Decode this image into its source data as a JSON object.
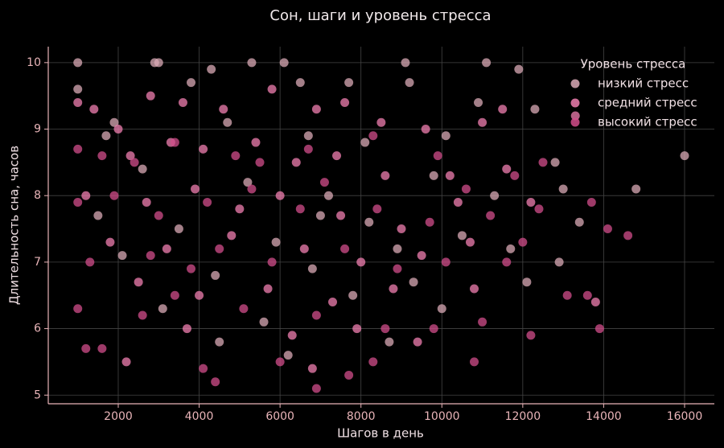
{
  "chart_data": {
    "type": "scatter",
    "title": "Сон, шаги и уровень стресса",
    "x_label": "Шагов в день",
    "y_label": "Длительность сна, часов",
    "legend_title": "Уровень стресса",
    "legend_position": "upper right",
    "grid": true,
    "xlim": [
      270,
      16736
    ],
    "ylim": [
      4.87,
      10.24
    ],
    "xticks": [
      2000,
      4000,
      6000,
      8000,
      10000,
      12000,
      14000,
      16000
    ],
    "yticks": [
      5,
      6,
      7,
      8,
      9,
      10
    ],
    "series": [
      {
        "name": "низкий стресс",
        "color": "#d9a9b6",
        "x": [
          1000,
          2900,
          3000,
          5300,
          6100,
          9100,
          11100,
          11900,
          4300,
          1000,
          3800,
          6500,
          7700,
          9200,
          10900,
          12300,
          1900,
          4700,
          6700,
          8100,
          10100,
          12800,
          14800,
          16000,
          13000,
          2600,
          5200,
          7200,
          9800,
          11300,
          1500,
          3500,
          5900,
          8200,
          10500,
          12900,
          2100,
          4400,
          6800,
          9300,
          11700,
          3100,
          5600,
          7800,
          10000,
          12100,
          4500,
          6200,
          8700,
          1700,
          13400,
          7000,
          8900
        ],
        "values": [
          10,
          10,
          10,
          10,
          10,
          10,
          10,
          9.9,
          9.9,
          9.6,
          9.7,
          9.7,
          9.7,
          9.7,
          9.4,
          9.3,
          9.1,
          9.1,
          8.9,
          8.8,
          8.9,
          8.5,
          8.1,
          8.6,
          8.1,
          8.4,
          8.2,
          8.0,
          8.3,
          8.0,
          7.7,
          7.5,
          7.3,
          7.6,
          7.4,
          7.0,
          7.1,
          6.8,
          6.9,
          6.7,
          7.2,
          6.3,
          6.1,
          6.5,
          6.3,
          6.7,
          5.8,
          5.6,
          5.8,
          8.9,
          7.6,
          7.7,
          7.2
        ]
      },
      {
        "name": "средний стресс",
        "color": "#f07fb0",
        "x": [
          1000,
          1400,
          2000,
          2800,
          3600,
          4600,
          5800,
          6900,
          7600,
          8500,
          9600,
          11000,
          11500,
          13300,
          2300,
          3300,
          4100,
          5400,
          6400,
          7400,
          8600,
          10200,
          11600,
          1200,
          2700,
          3900,
          5000,
          6000,
          7500,
          9000,
          10400,
          12200,
          1800,
          3200,
          4800,
          6600,
          8000,
          9500,
          10700,
          2500,
          4000,
          5700,
          7300,
          8800,
          10800,
          3700,
          6300,
          7900,
          9400,
          13800,
          2200,
          6800
        ],
        "values": [
          9.4,
          9.3,
          9.0,
          9.5,
          9.4,
          9.3,
          9.6,
          9.3,
          9.4,
          9.1,
          9.0,
          9.1,
          9.3,
          9.2,
          8.6,
          8.8,
          8.7,
          8.8,
          8.5,
          8.6,
          8.3,
          8.3,
          8.4,
          8.0,
          7.9,
          8.1,
          7.8,
          8.0,
          7.7,
          7.5,
          7.9,
          7.9,
          7.3,
          7.2,
          7.4,
          7.2,
          7.0,
          7.1,
          7.3,
          6.7,
          6.5,
          6.6,
          6.4,
          6.6,
          6.6,
          6.0,
          5.9,
          6.0,
          5.8,
          6.4,
          5.5,
          5.4
        ]
      },
      {
        "name": "высокий стресс",
        "color": "#d24d8b",
        "x": [
          1000,
          1600,
          2400,
          3400,
          4900,
          5500,
          6700,
          8300,
          9900,
          10600,
          11800,
          12500,
          1000,
          1900,
          3000,
          4200,
          5300,
          6500,
          7100,
          8400,
          9700,
          11200,
          12400,
          13700,
          14100,
          14600,
          1300,
          2800,
          3800,
          4500,
          5800,
          7600,
          8900,
          10100,
          11600,
          12000,
          13100,
          13600,
          1000,
          2600,
          3400,
          5100,
          6900,
          8600,
          9800,
          11000,
          12200,
          13900,
          1200,
          1600,
          4100,
          4400,
          6000,
          6900,
          7700,
          8300,
          10800
        ],
        "values": [
          8.7,
          8.6,
          8.5,
          8.8,
          8.6,
          8.5,
          8.7,
          8.9,
          8.6,
          8.1,
          8.3,
          8.5,
          7.9,
          8.0,
          7.7,
          7.9,
          8.1,
          7.8,
          8.2,
          7.8,
          7.6,
          7.7,
          7.8,
          7.9,
          7.5,
          7.4,
          7.0,
          7.1,
          6.9,
          7.2,
          7.0,
          7.2,
          6.9,
          7.0,
          7.0,
          7.3,
          6.5,
          6.5,
          6.3,
          6.2,
          6.5,
          6.3,
          6.2,
          6.0,
          6.0,
          6.1,
          5.9,
          6.0,
          5.7,
          5.7,
          5.4,
          5.2,
          5.5,
          5.1,
          5.3,
          5.5,
          5.5
        ]
      }
    ]
  }
}
